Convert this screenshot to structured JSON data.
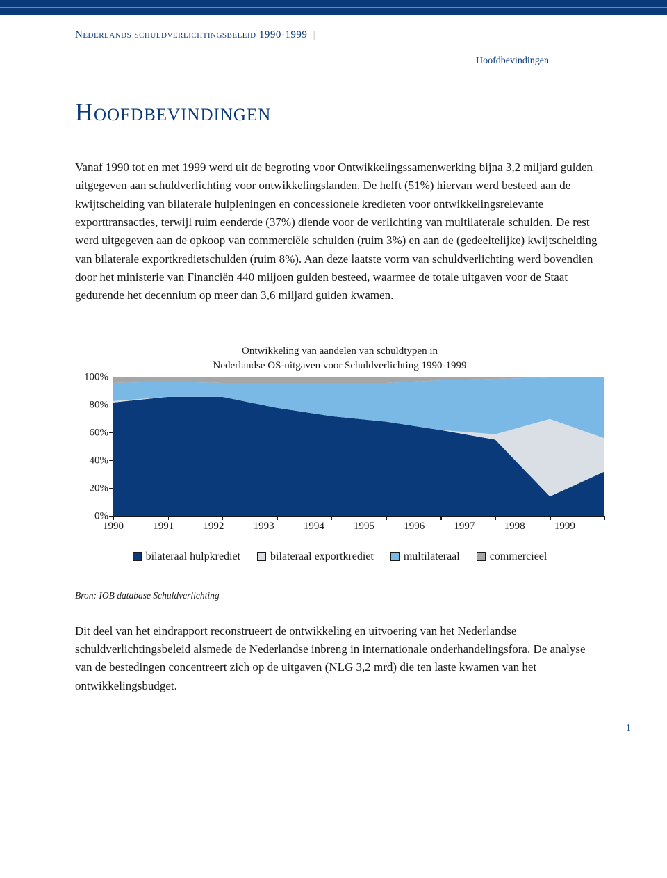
{
  "header": {
    "running_title": "Nederlands schuldverlichtingsbeleid 1990-1999",
    "section": "Hoofdbevindingen"
  },
  "title": "Hoofdbevindingen",
  "para1": "Vanaf 1990 tot en met 1999 werd uit de begroting voor Ontwikkelingssamenwerking bijna 3,2 miljard gulden uitgegeven aan schuldverlichting voor ontwikkelingslanden. De helft (51%) hiervan werd besteed aan de kwijtschelding van bilaterale hulpleningen en concessionele kredieten voor ontwikkelingsrelevante exporttransacties, terwijl ruim eenderde (37%) diende voor de verlichting van multilaterale schulden. De rest werd uitgegeven aan de opkoop van commerciële schulden (ruim 3%) en aan de (gedeeltelijke) kwijtschelding van bilaterale exportkredietschulden (ruim 8%). Aan deze laatste vorm van schuldverlichting werd bovendien door het ministerie van Financiën 440 miljoen gulden besteed, waarmee de totale uitgaven voor de Staat gedurende het decennium op meer dan 3,6 miljard gulden kwamen.",
  "chart": {
    "type": "stacked-area",
    "title_line1": "Ontwikkeling van aandelen van schuldtypen in",
    "title_line2": "Nederlandse OS-uitgaven voor Schuldverlichting 1990-1999",
    "x_categories": [
      "1990",
      "1991",
      "1992",
      "1993",
      "1994",
      "1995",
      "1996",
      "1997",
      "1998",
      "1999"
    ],
    "y_ticks": [
      "0%",
      "20%",
      "40%",
      "60%",
      "80%",
      "100%"
    ],
    "ylim": [
      0,
      100
    ],
    "series": [
      {
        "key": "bilateraal_hulpkrediet",
        "label": "bilateraal hulpkrediet",
        "color": "#0a3a7a",
        "values": [
          82,
          86,
          86,
          78,
          72,
          68,
          62,
          55,
          14,
          32
        ]
      },
      {
        "key": "bilateraal_exportkrediet",
        "label": "bilateraal exportkrediet",
        "color": "#d9dfe4",
        "values": [
          1,
          0,
          0,
          0,
          0,
          0,
          0,
          4,
          56,
          24
        ]
      },
      {
        "key": "multilateraal",
        "label": "multilateraal",
        "color": "#7ab8e6",
        "values": [
          13,
          11,
          10,
          18,
          24,
          28,
          36,
          40,
          30,
          44
        ]
      },
      {
        "key": "commercieel",
        "label": "commercieel",
        "color": "#a6a6a6",
        "values": [
          4,
          3,
          4,
          4,
          4,
          4,
          2,
          1,
          0,
          0
        ]
      }
    ],
    "background_color": "#ffffff",
    "axis_color": "#1a1a1a",
    "font_size_axis": 15,
    "font_size_title": 15
  },
  "source": "Bron: IOB database Schuldverlichting",
  "para2": "Dit deel van het eindrapport reconstrueert de ontwikkeling en uitvoering van het Nederlandse schuldverlichtingsbeleid alsmede de Nederlandse inbreng in internationale onderhandelingsfora. De analyse van de bestedingen concentreert zich op de uitgaven (NLG 3,2 mrd) die ten laste kwamen van het ontwikkelingsbudget.",
  "page_number": "1"
}
